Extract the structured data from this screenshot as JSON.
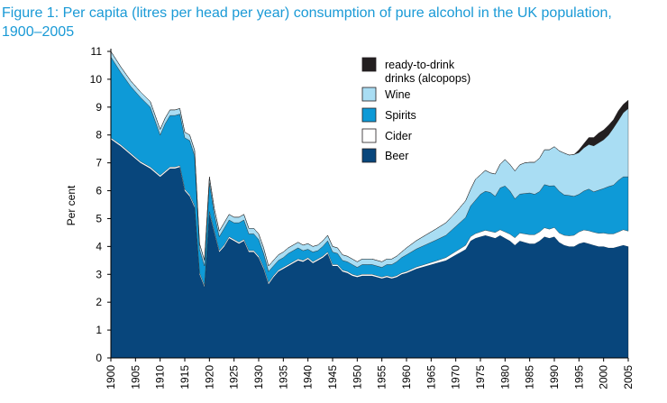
{
  "title": {
    "line1": "Figure 1: Per capita (litres per head per year) consumption of pure alcohol in the UK population,",
    "line2": "1900–2005"
  },
  "colors": {
    "beer": "#08467c",
    "cider": "#ffffff",
    "spirits": "#0e9ad7",
    "wine": "#a9ddf3",
    "rtd": "#231f20",
    "title": "#1a9ad6"
  },
  "chart_data": {
    "type": "area",
    "stacked": true,
    "ylabel": "Per cent",
    "xlabel": "",
    "xlim": [
      1900,
      2005
    ],
    "ylim": [
      0,
      11
    ],
    "yticks": [
      0,
      1,
      2,
      3,
      4,
      5,
      6,
      7,
      8,
      9,
      10,
      11
    ],
    "xticks": [
      1900,
      1905,
      1910,
      1915,
      1920,
      1925,
      1930,
      1935,
      1940,
      1945,
      1950,
      1955,
      1960,
      1965,
      1970,
      1975,
      1980,
      1985,
      1990,
      1995,
      2000,
      2005
    ],
    "legend_position": "top-right",
    "x": [
      1900,
      1902,
      1904,
      1906,
      1908,
      1910,
      1911,
      1912,
      1913,
      1914,
      1915,
      1916,
      1917,
      1918,
      1919,
      1920,
      1921,
      1922,
      1923,
      1924,
      1925,
      1926,
      1927,
      1928,
      1929,
      1930,
      1931,
      1932,
      1933,
      1934,
      1935,
      1936,
      1937,
      1938,
      1939,
      1940,
      1941,
      1942,
      1943,
      1944,
      1945,
      1946,
      1947,
      1948,
      1949,
      1950,
      1951,
      1952,
      1953,
      1954,
      1955,
      1956,
      1957,
      1958,
      1959,
      1960,
      1962,
      1964,
      1966,
      1968,
      1970,
      1972,
      1973,
      1974,
      1975,
      1976,
      1977,
      1978,
      1979,
      1980,
      1981,
      1982,
      1983,
      1984,
      1985,
      1986,
      1987,
      1988,
      1989,
      1990,
      1991,
      1992,
      1993,
      1994,
      1995,
      1996,
      1997,
      1998,
      1999,
      2000,
      2001,
      2002,
      2003,
      2004,
      2005
    ],
    "series": [
      {
        "name": "Beer",
        "values": [
          7.85,
          7.6,
          7.3,
          7.0,
          6.8,
          6.5,
          6.65,
          6.8,
          6.8,
          6.85,
          6.0,
          5.8,
          5.4,
          3.0,
          2.55,
          5.2,
          4.5,
          3.8,
          4.0,
          4.3,
          4.2,
          4.1,
          4.2,
          3.8,
          3.8,
          3.6,
          3.2,
          2.65,
          2.9,
          3.1,
          3.2,
          3.3,
          3.4,
          3.5,
          3.45,
          3.55,
          3.4,
          3.5,
          3.6,
          3.75,
          3.3,
          3.3,
          3.1,
          3.05,
          2.95,
          2.9,
          2.95,
          2.95,
          2.95,
          2.9,
          2.85,
          2.9,
          2.85,
          2.9,
          3.0,
          3.05,
          3.2,
          3.3,
          3.4,
          3.5,
          3.7,
          3.9,
          4.2,
          4.3,
          4.35,
          4.4,
          4.35,
          4.3,
          4.4,
          4.3,
          4.2,
          4.05,
          4.2,
          4.15,
          4.1,
          4.1,
          4.2,
          4.35,
          4.3,
          4.35,
          4.15,
          4.05,
          4.0,
          4.0,
          4.1,
          4.15,
          4.1,
          4.05,
          4.0,
          4.0,
          3.95,
          3.95,
          4.0,
          4.05,
          4.0
        ]
      },
      {
        "name": "Cider",
        "values": [
          0.05,
          0.05,
          0.05,
          0.05,
          0.05,
          0.05,
          0.05,
          0.05,
          0.05,
          0.05,
          0.05,
          0.05,
          0.05,
          0.05,
          0.05,
          0.05,
          0.05,
          0.05,
          0.05,
          0.05,
          0.05,
          0.05,
          0.05,
          0.05,
          0.05,
          0.05,
          0.05,
          0.05,
          0.05,
          0.05,
          0.05,
          0.05,
          0.05,
          0.05,
          0.05,
          0.05,
          0.05,
          0.05,
          0.05,
          0.05,
          0.05,
          0.05,
          0.05,
          0.05,
          0.05,
          0.05,
          0.05,
          0.05,
          0.05,
          0.05,
          0.05,
          0.05,
          0.05,
          0.05,
          0.05,
          0.05,
          0.06,
          0.07,
          0.08,
          0.1,
          0.12,
          0.14,
          0.15,
          0.16,
          0.17,
          0.18,
          0.19,
          0.2,
          0.2,
          0.22,
          0.24,
          0.26,
          0.28,
          0.3,
          0.32,
          0.32,
          0.32,
          0.32,
          0.32,
          0.33,
          0.33,
          0.35,
          0.38,
          0.4,
          0.42,
          0.44,
          0.46,
          0.46,
          0.47,
          0.48,
          0.5,
          0.5,
          0.52,
          0.55,
          0.55
        ]
      },
      {
        "name": "Spirits",
        "values": [
          2.9,
          2.6,
          2.4,
          2.3,
          2.15,
          1.45,
          1.7,
          1.85,
          1.85,
          1.85,
          1.85,
          1.95,
          1.8,
          0.85,
          0.7,
          1.05,
          0.6,
          0.5,
          0.6,
          0.6,
          0.6,
          0.7,
          0.7,
          0.6,
          0.6,
          0.6,
          0.5,
          0.4,
          0.35,
          0.35,
          0.35,
          0.4,
          0.4,
          0.4,
          0.35,
          0.3,
          0.35,
          0.3,
          0.35,
          0.4,
          0.45,
          0.4,
          0.35,
          0.35,
          0.35,
          0.3,
          0.35,
          0.35,
          0.35,
          0.35,
          0.35,
          0.4,
          0.45,
          0.5,
          0.55,
          0.6,
          0.65,
          0.7,
          0.75,
          0.8,
          0.9,
          1.0,
          1.1,
          1.2,
          1.35,
          1.4,
          1.4,
          1.3,
          1.5,
          1.65,
          1.55,
          1.4,
          1.4,
          1.45,
          1.5,
          1.45,
          1.45,
          1.55,
          1.55,
          1.5,
          1.5,
          1.45,
          1.45,
          1.4,
          1.35,
          1.4,
          1.5,
          1.45,
          1.55,
          1.6,
          1.7,
          1.75,
          1.85,
          1.9,
          1.95
        ]
      },
      {
        "name": "Wine",
        "values": [
          0.2,
          0.2,
          0.2,
          0.2,
          0.2,
          0.2,
          0.2,
          0.2,
          0.2,
          0.2,
          0.2,
          0.2,
          0.2,
          0.2,
          0.2,
          0.2,
          0.2,
          0.2,
          0.2,
          0.2,
          0.2,
          0.2,
          0.2,
          0.2,
          0.2,
          0.2,
          0.2,
          0.2,
          0.2,
          0.2,
          0.2,
          0.2,
          0.2,
          0.2,
          0.2,
          0.2,
          0.2,
          0.2,
          0.2,
          0.2,
          0.2,
          0.2,
          0.2,
          0.2,
          0.2,
          0.2,
          0.2,
          0.2,
          0.2,
          0.2,
          0.2,
          0.2,
          0.2,
          0.2,
          0.2,
          0.25,
          0.3,
          0.35,
          0.4,
          0.45,
          0.5,
          0.6,
          0.6,
          0.75,
          0.7,
          0.75,
          0.7,
          0.8,
          0.85,
          0.95,
          0.95,
          1.0,
          1.05,
          1.1,
          1.1,
          1.15,
          1.2,
          1.25,
          1.3,
          1.4,
          1.45,
          1.5,
          1.45,
          1.5,
          1.5,
          1.55,
          1.6,
          1.65,
          1.7,
          1.75,
          1.85,
          2.05,
          2.15,
          2.3,
          2.45
        ]
      },
      {
        "name": "ready-to-drink drinks (alcopops)",
        "values": [
          0,
          0,
          0,
          0,
          0,
          0,
          0,
          0,
          0,
          0,
          0,
          0,
          0,
          0,
          0,
          0,
          0,
          0,
          0,
          0,
          0,
          0,
          0,
          0,
          0,
          0,
          0,
          0,
          0,
          0,
          0,
          0,
          0,
          0,
          0,
          0,
          0,
          0,
          0,
          0,
          0,
          0,
          0,
          0,
          0,
          0,
          0,
          0,
          0,
          0,
          0,
          0,
          0,
          0,
          0,
          0,
          0,
          0,
          0,
          0,
          0,
          0,
          0,
          0,
          0,
          0,
          0,
          0,
          0,
          0,
          0,
          0,
          0,
          0,
          0,
          0,
          0,
          0,
          0,
          0,
          0,
          0,
          0,
          0,
          0.1,
          0.15,
          0.25,
          0.3,
          0.35,
          0.35,
          0.35,
          0.3,
          0.35,
          0.3,
          0.3
        ]
      }
    ],
    "legend": [
      {
        "key": "rtd",
        "label_line1": "ready-to-drink",
        "label_line2": "drinks (alcopops)"
      },
      {
        "key": "wine",
        "label_line1": "Wine",
        "label_line2": ""
      },
      {
        "key": "spirits",
        "label_line1": "Spirits",
        "label_line2": ""
      },
      {
        "key": "cider",
        "label_line1": "Cider",
        "label_line2": ""
      },
      {
        "key": "beer",
        "label_line1": "Beer",
        "label_line2": ""
      }
    ]
  }
}
